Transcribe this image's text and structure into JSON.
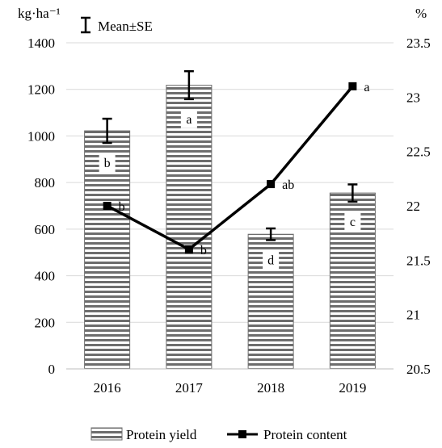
{
  "chart_data": {
    "type": "bar",
    "categories": [
      "2016",
      "2017",
      "2018",
      "2019"
    ],
    "left_axis": {
      "unit_label": "kg·ha⁻¹",
      "ylim": [
        0,
        1400
      ],
      "ticks": [
        "0",
        "200",
        "400",
        "600",
        "800",
        "1000",
        "1200",
        "1400"
      ]
    },
    "right_axis": {
      "unit_label": "%",
      "ylim": [
        20.5,
        23.5
      ],
      "ticks": [
        "20.5",
        "21",
        "21.5",
        "22",
        "22.5",
        "23",
        "23.5"
      ]
    },
    "series": [
      {
        "name": "Protein yield",
        "type": "bar",
        "axis": "left",
        "values": [
          1022,
          1218,
          578,
          755
        ],
        "se": [
          52,
          60,
          25,
          37
        ],
        "letters": [
          "b",
          "a",
          "d",
          "c"
        ],
        "color": "#6d6d6d"
      },
      {
        "name": "Protein content",
        "type": "line",
        "axis": "right",
        "values": [
          22.0,
          21.6,
          22.2,
          23.1
        ],
        "letters": [
          "b",
          "b",
          "ab",
          "a"
        ],
        "color": "#000000"
      }
    ],
    "errorbar_legend": "Mean±SE",
    "grid": true,
    "legend_position": "bottom"
  }
}
